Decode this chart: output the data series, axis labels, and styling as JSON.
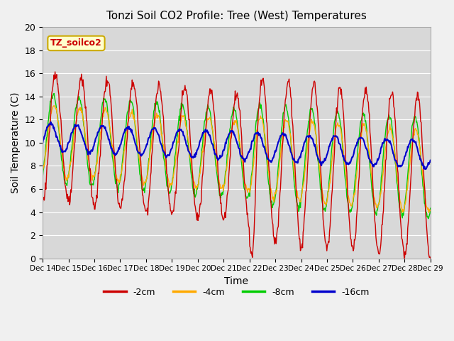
{
  "title": "Tonzi Soil CO2 Profile: Tree (West) Temperatures",
  "xlabel": "Time",
  "ylabel": "Soil Temperature (C)",
  "ylim": [
    0,
    20
  ],
  "yticks": [
    0,
    2,
    4,
    6,
    8,
    10,
    12,
    14,
    16,
    18,
    20
  ],
  "legend_label": "TZ_soilco2",
  "series_labels": [
    "-2cm",
    "-4cm",
    "-8cm",
    "-16cm"
  ],
  "series_colors": [
    "#cc0000",
    "#ffaa00",
    "#00cc00",
    "#0000cc"
  ],
  "fig_facecolor": "#f0f0f0",
  "plot_facecolor": "#d8d8d8",
  "start_day": 14,
  "end_day": 29,
  "n_points": 720
}
